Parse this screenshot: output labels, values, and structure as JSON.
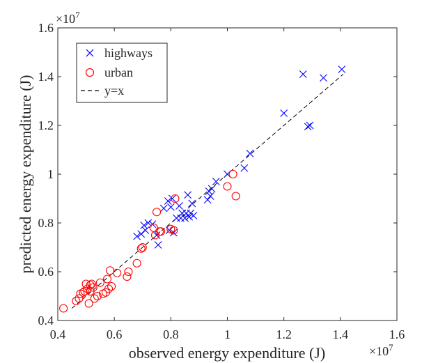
{
  "chart_data": {
    "type": "scatter",
    "title": "",
    "xlabel": "observed energy expenditure (J)",
    "ylabel": "predicted energy expenditure (J)",
    "x_multiplier": "×10",
    "x_exponent": "7",
    "y_multiplier": "×10",
    "y_exponent": "7",
    "xlim": [
      0.4,
      1.6
    ],
    "ylim": [
      0.4,
      1.6
    ],
    "xticks": [
      0.4,
      0.6,
      0.8,
      1.0,
      1.2,
      1.4,
      1.6
    ],
    "yticks": [
      0.4,
      0.6,
      0.8,
      1.0,
      1.2,
      1.4,
      1.6
    ],
    "xtick_labels": [
      "0.4",
      "0.6",
      "0.8",
      "1",
      "1.2",
      "1.4",
      "1.6"
    ],
    "ytick_labels": [
      "0.4",
      "0.6",
      "0.8",
      "1",
      "1.2",
      "1.4",
      "1.6"
    ],
    "legend_position": "top-left",
    "grid": false,
    "series": [
      {
        "name": "highways",
        "marker": "x",
        "color": "#0000ff",
        "x": [
          0.68,
          0.695,
          0.705,
          0.71,
          0.72,
          0.735,
          0.75,
          0.755,
          0.775,
          0.79,
          0.795,
          0.8,
          0.805,
          0.81,
          0.82,
          0.83,
          0.835,
          0.84,
          0.85,
          0.855,
          0.86,
          0.865,
          0.87,
          0.875,
          0.88,
          0.93,
          0.935,
          0.94,
          0.945,
          0.96,
          1.0,
          1.06,
          1.08,
          1.2,
          1.268,
          1.285,
          1.292,
          1.34,
          1.405
        ],
        "y": [
          0.745,
          0.755,
          0.79,
          0.77,
          0.8,
          0.795,
          0.75,
          0.71,
          0.86,
          0.89,
          0.77,
          0.865,
          0.9,
          0.76,
          0.82,
          0.87,
          0.82,
          0.84,
          0.82,
          0.84,
          0.915,
          0.825,
          0.84,
          0.88,
          0.83,
          0.895,
          0.93,
          0.91,
          0.94,
          0.97,
          1.0,
          1.025,
          1.085,
          1.25,
          1.41,
          1.195,
          1.2,
          1.395,
          1.43
        ]
      },
      {
        "name": "urban",
        "marker": "o",
        "color": "#ff0000",
        "x": [
          0.42,
          0.465,
          0.475,
          0.48,
          0.49,
          0.495,
          0.5,
          0.505,
          0.51,
          0.515,
          0.515,
          0.52,
          0.525,
          0.53,
          0.54,
          0.55,
          0.56,
          0.57,
          0.575,
          0.58,
          0.585,
          0.59,
          0.61,
          0.645,
          0.65,
          0.68,
          0.695,
          0.7,
          0.74,
          0.745,
          0.75,
          0.76,
          0.765,
          0.8,
          0.81,
          0.815,
          1.0,
          1.02,
          1.03
        ],
        "y": [
          0.45,
          0.48,
          0.49,
          0.51,
          0.515,
          0.52,
          0.55,
          0.53,
          0.47,
          0.545,
          0.52,
          0.55,
          0.535,
          0.49,
          0.5,
          0.555,
          0.51,
          0.515,
          0.57,
          0.53,
          0.605,
          0.54,
          0.595,
          0.58,
          0.6,
          0.635,
          0.695,
          0.7,
          0.78,
          0.75,
          0.845,
          0.765,
          0.765,
          0.775,
          0.77,
          0.9,
          0.95,
          1.0,
          0.91
        ]
      },
      {
        "name": "y=x",
        "marker": "none",
        "line": "dashed",
        "color": "#000000",
        "x": [
          0.45,
          1.41
        ],
        "y": [
          0.45,
          1.41
        ]
      }
    ]
  }
}
